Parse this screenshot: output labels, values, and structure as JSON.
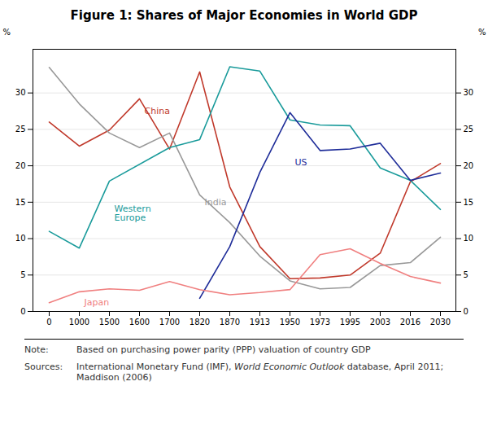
{
  "chart_data": {
    "type": "line",
    "title": "Figure 1: Shares of Major Economies in World GDP",
    "categories": [
      "0",
      "1000",
      "1500",
      "1600",
      "1700",
      "1820",
      "1870",
      "1913",
      "1950",
      "1973",
      "1995",
      "2003",
      "2016",
      "2030"
    ],
    "series": [
      {
        "name": "China",
        "color": "#C0392B",
        "x": [
          "0",
          "1000",
          "1500",
          "1600",
          "1700",
          "1820",
          "1870",
          "1913",
          "1950",
          "1973",
          "1995",
          "2003",
          "2016",
          "2030"
        ],
        "values": [
          26.0,
          22.7,
          24.9,
          29.2,
          22.3,
          32.9,
          17.1,
          8.9,
          4.5,
          4.6,
          5.0,
          8.0,
          17.8,
          20.3
        ]
      },
      {
        "name": "India",
        "color": "#999999",
        "x": [
          "0",
          "1000",
          "1500",
          "1600",
          "1700",
          "1820",
          "1870",
          "1913",
          "1950",
          "1973",
          "1995",
          "2003",
          "2016",
          "2030"
        ],
        "values": [
          33.5,
          28.5,
          24.5,
          22.5,
          24.5,
          16.0,
          12.2,
          7.6,
          4.2,
          3.1,
          3.3,
          6.3,
          6.7,
          10.2
        ]
      },
      {
        "name": "Western Europe",
        "color": "#1A9B9B",
        "x": [
          "0",
          "1000",
          "1500",
          "1700",
          "1820",
          "1870",
          "1913",
          "1950",
          "1973",
          "1995",
          "2003",
          "2016",
          "2030"
        ],
        "values": [
          11.0,
          8.7,
          17.9,
          22.5,
          23.6,
          33.6,
          33.0,
          26.3,
          25.6,
          25.5,
          19.7,
          18.0,
          14.0
        ]
      },
      {
        "name": "US",
        "color": "#1F2D99",
        "x": [
          "1820",
          "1870",
          "1913",
          "1950",
          "1973",
          "1995",
          "2003",
          "2016",
          "2030"
        ],
        "values": [
          1.8,
          8.9,
          19.1,
          27.3,
          22.1,
          22.3,
          23.1,
          18.0,
          19.0
        ]
      },
      {
        "name": "Japan",
        "color": "#F08080",
        "x": [
          "0",
          "1000",
          "1500",
          "1600",
          "1700",
          "1820",
          "1870",
          "1913",
          "1950",
          "1973",
          "1995",
          "2003",
          "2016",
          "2030"
        ],
        "values": [
          1.2,
          2.7,
          3.1,
          2.9,
          4.1,
          3.0,
          2.3,
          2.6,
          3.0,
          7.8,
          8.6,
          6.6,
          4.8,
          3.9
        ]
      }
    ],
    "y_label": "%",
    "ylim": [
      0,
      36
    ],
    "yticks": [
      0,
      5,
      10,
      15,
      20,
      25,
      30
    ],
    "y2_label": "%",
    "y2lim": [
      0,
      36
    ],
    "y2ticks": [
      0,
      5,
      10,
      15,
      20,
      25,
      30
    ],
    "grid": true,
    "annotations": [
      {
        "text": "China",
        "x": "1600",
        "y": 27.5,
        "color": "#C0392B"
      },
      {
        "text": "Western\nEurope",
        "x": "1500",
        "y": 13.5,
        "color": "#1A9B9B"
      },
      {
        "text": "US",
        "x": "1950",
        "y": 20.5,
        "color": "#1F2D99"
      },
      {
        "text": "India",
        "x": "1820",
        "y": 15.0,
        "color": "#999999"
      },
      {
        "text": "Japan",
        "x": "1000",
        "y": 1.2,
        "color": "#F08080"
      }
    ],
    "notes": [
      {
        "label": "Note:",
        "text": [
          "Based on purchasing power parity (PPP) valuation of country GDP"
        ]
      },
      {
        "label": "Sources:",
        "text": [
          "International Monetary Fund (IMF), ",
          "World Economic Outlook",
          " database, April 2011; Maddison (2006)"
        ]
      }
    ]
  }
}
